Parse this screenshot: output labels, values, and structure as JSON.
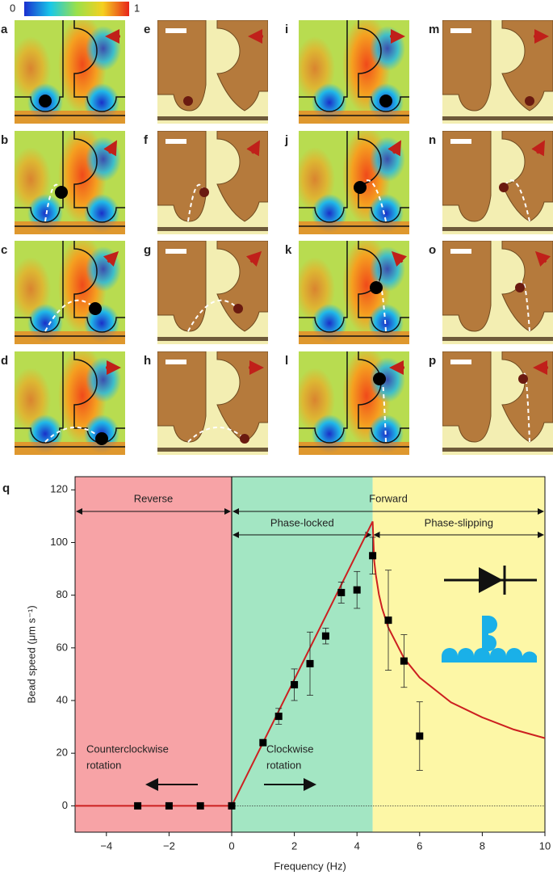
{
  "colorbar": {
    "ticks": [
      0,
      1
    ]
  },
  "panels": [
    "a",
    "b",
    "c",
    "d",
    "e",
    "f",
    "g",
    "h",
    "i",
    "j",
    "k",
    "l",
    "m",
    "n",
    "o",
    "p"
  ],
  "chart_data": {
    "type": "scatter",
    "label": "q",
    "xlabel": "Frequency (Hz)",
    "ylabel": "Bead speed (μm s⁻¹)",
    "xlim": [
      -5,
      10
    ],
    "ylim": [
      -10,
      125
    ],
    "xticks": [
      {
        "value": -4,
        "label": "−4"
      },
      {
        "value": -2,
        "label": "−2"
      },
      0,
      2,
      4,
      6,
      8,
      10
    ],
    "yticks": [
      0,
      20,
      40,
      60,
      80,
      100,
      120
    ],
    "regions": [
      {
        "from": -5,
        "to": 0,
        "color": "#f7a3a6"
      },
      {
        "from": 0,
        "to": 4.5,
        "color": "#a3e6c3"
      },
      {
        "from": 4.5,
        "to": 10,
        "color": "#fdf7a6"
      }
    ],
    "spans": [
      {
        "label": "Reverse",
        "from": -5,
        "to": 0
      },
      {
        "label": "Forward",
        "from": 0,
        "to": 10
      },
      {
        "label": "Phase-locked",
        "from": 0,
        "to": 4.5
      },
      {
        "label": "Phase-slipping",
        "from": 4.5,
        "to": 10
      }
    ],
    "annotations": [
      {
        "lines": [
          "Counterclockwise",
          "rotation"
        ]
      },
      {
        "lines": [
          "Clockwise",
          "rotation"
        ]
      }
    ],
    "points": {
      "color": "#000000",
      "x": [
        -3,
        -2,
        -1,
        0,
        1,
        1.5,
        2,
        2.5,
        3,
        3.5,
        4,
        4.5,
        5,
        5.5,
        6
      ],
      "values": [
        0,
        0,
        0,
        0,
        24,
        34,
        46,
        54,
        64.5,
        81,
        82,
        95,
        70.5,
        55,
        26.5
      ],
      "errors": [
        0,
        0,
        0,
        0,
        0,
        3,
        6,
        12,
        3,
        4,
        7,
        7,
        19,
        10,
        13
      ]
    },
    "model": {
      "color": "#cc2020",
      "x": [
        -5,
        0,
        4.5,
        4.55,
        4.6,
        4.7,
        4.8,
        5,
        5.5,
        6,
        7,
        8,
        9,
        10
      ],
      "values": [
        0,
        0,
        108,
        93,
        87.8,
        80.3,
        75.1,
        67.7,
        56.1,
        48.7,
        39.3,
        33.6,
        29,
        25.7
      ]
    }
  }
}
